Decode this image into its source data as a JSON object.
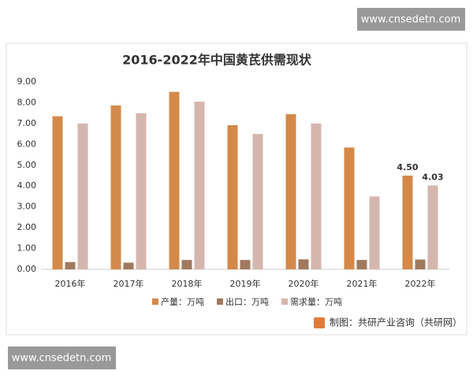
{
  "watermarks": [
    "www.cnsedetn.com",
    "www.cnsedetn.com"
  ],
  "chart_data": {
    "type": "bar",
    "title": "2016-2022年中国黄芪供需现状",
    "categories": [
      "2016年",
      "2017年",
      "2018年",
      "2019年",
      "2020年",
      "2021年",
      "2022年"
    ],
    "series": [
      {
        "name": "产量：万吨",
        "color": "#d4894a",
        "values": [
          7.35,
          7.87,
          8.52,
          6.92,
          7.45,
          5.85,
          4.5
        ],
        "value_labels": [
          null,
          null,
          null,
          null,
          null,
          null,
          "4.50"
        ]
      },
      {
        "name": "出口：万吨",
        "color": "#a07a5f",
        "values": [
          0.35,
          0.32,
          0.45,
          0.45,
          0.48,
          0.45,
          0.47
        ]
      },
      {
        "name": "需求量：万吨",
        "color": "#d5b6ae",
        "values": [
          7.0,
          7.5,
          8.05,
          6.5,
          7.0,
          3.5,
          4.03
        ],
        "value_labels": [
          null,
          null,
          null,
          null,
          null,
          null,
          "4.03"
        ]
      }
    ],
    "ylim": [
      0,
      9
    ],
    "yticks": [
      {
        "value": 0,
        "label": "0.00"
      },
      {
        "value": 1,
        "label": "1.00"
      },
      {
        "value": 2,
        "label": "2.00"
      },
      {
        "value": 3,
        "label": "3.00"
      },
      {
        "value": 4,
        "label": "4.00"
      },
      {
        "value": 5,
        "label": "5.00"
      },
      {
        "value": 6,
        "label": "6.00"
      },
      {
        "value": 7,
        "label": "7.00"
      },
      {
        "value": 8,
        "label": "8.00"
      },
      {
        "value": 9,
        "label": "9.00"
      }
    ],
    "grid": false,
    "legend": "bottom",
    "source": "制图：共研产业咨询（共研网）"
  }
}
